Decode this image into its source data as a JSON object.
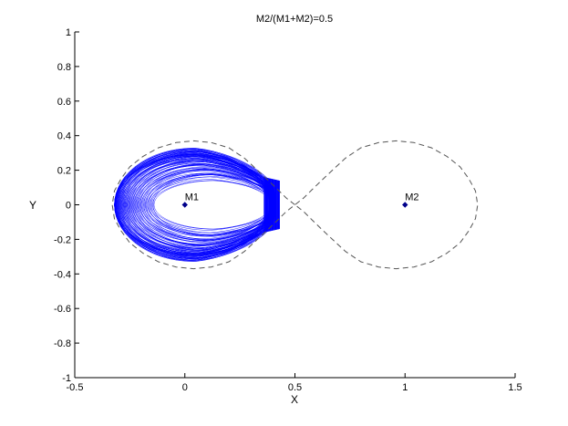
{
  "chart_data": {
    "type": "scatter",
    "title": "M2/(M1+M2)=0.5",
    "xlabel": "X",
    "ylabel": "Y",
    "xlim": [
      -0.5,
      1.5
    ],
    "ylim": [
      -1,
      1
    ],
    "xticks": [
      "-0.5",
      "0",
      "0.5",
      "1",
      "1.5"
    ],
    "yticks": [
      "-1",
      "-0.8",
      "-0.6",
      "-0.4",
      "-0.2",
      "0",
      "0.2",
      "0.4",
      "0.6",
      "0.8",
      "1"
    ],
    "grid": false,
    "colors": {
      "orbit": "#0000ff",
      "boundary": "#555555",
      "masses": "#00008b"
    },
    "masses": [
      {
        "label": "M1",
        "x": 0,
        "y": 0
      },
      {
        "label": "M2",
        "x": 1,
        "y": 0
      }
    ],
    "boundary_curve": {
      "style": "dashed",
      "points": [
        [
          0.5,
          0.0
        ],
        [
          0.46,
          0.04
        ],
        [
          0.42,
          0.09
        ],
        [
          0.38,
          0.14
        ],
        [
          0.33,
          0.2
        ],
        [
          0.27,
          0.27
        ],
        [
          0.2,
          0.33
        ],
        [
          0.12,
          0.36
        ],
        [
          0.04,
          0.37
        ],
        [
          -0.04,
          0.36
        ],
        [
          -0.12,
          0.33
        ],
        [
          -0.19,
          0.28
        ],
        [
          -0.25,
          0.22
        ],
        [
          -0.29,
          0.15
        ],
        [
          -0.32,
          0.08
        ],
        [
          -0.33,
          0.0
        ],
        [
          -0.32,
          -0.08
        ],
        [
          -0.29,
          -0.15
        ],
        [
          -0.25,
          -0.22
        ],
        [
          -0.19,
          -0.28
        ],
        [
          -0.12,
          -0.33
        ],
        [
          -0.04,
          -0.36
        ],
        [
          0.04,
          -0.37
        ],
        [
          0.12,
          -0.36
        ],
        [
          0.2,
          -0.33
        ],
        [
          0.27,
          -0.27
        ],
        [
          0.33,
          -0.2
        ],
        [
          0.38,
          -0.14
        ],
        [
          0.42,
          -0.09
        ],
        [
          0.46,
          -0.04
        ],
        [
          0.5,
          0.0
        ],
        [
          0.54,
          0.04
        ],
        [
          0.58,
          0.09
        ],
        [
          0.62,
          0.14
        ],
        [
          0.67,
          0.2
        ],
        [
          0.73,
          0.27
        ],
        [
          0.8,
          0.33
        ],
        [
          0.88,
          0.36
        ],
        [
          0.96,
          0.37
        ],
        [
          1.04,
          0.36
        ],
        [
          1.12,
          0.33
        ],
        [
          1.19,
          0.28
        ],
        [
          1.25,
          0.22
        ],
        [
          1.29,
          0.15
        ],
        [
          1.32,
          0.08
        ],
        [
          1.33,
          0.0
        ],
        [
          1.32,
          -0.08
        ],
        [
          1.29,
          -0.15
        ],
        [
          1.25,
          -0.22
        ],
        [
          1.19,
          -0.28
        ],
        [
          1.12,
          -0.33
        ],
        [
          1.04,
          -0.36
        ],
        [
          0.96,
          -0.37
        ],
        [
          0.88,
          -0.36
        ],
        [
          0.8,
          -0.33
        ],
        [
          0.73,
          -0.27
        ],
        [
          0.67,
          -0.2
        ],
        [
          0.62,
          -0.14
        ],
        [
          0.58,
          -0.09
        ],
        [
          0.54,
          -0.04
        ],
        [
          0.5,
          0.0
        ]
      ]
    },
    "orbit_region": {
      "x_range": [
        -0.32,
        0.43
      ],
      "y_range": [
        -0.31,
        0.31
      ],
      "description_points": [
        [
          -0.32,
          0.0
        ],
        [
          -0.25,
          0.25
        ],
        [
          0.05,
          0.31
        ],
        [
          0.3,
          0.22
        ],
        [
          0.42,
          0.16
        ],
        [
          0.43,
          0.0
        ],
        [
          0.42,
          -0.16
        ],
        [
          0.3,
          -0.22
        ],
        [
          0.05,
          -0.31
        ],
        [
          -0.25,
          -0.25
        ]
      ]
    }
  }
}
